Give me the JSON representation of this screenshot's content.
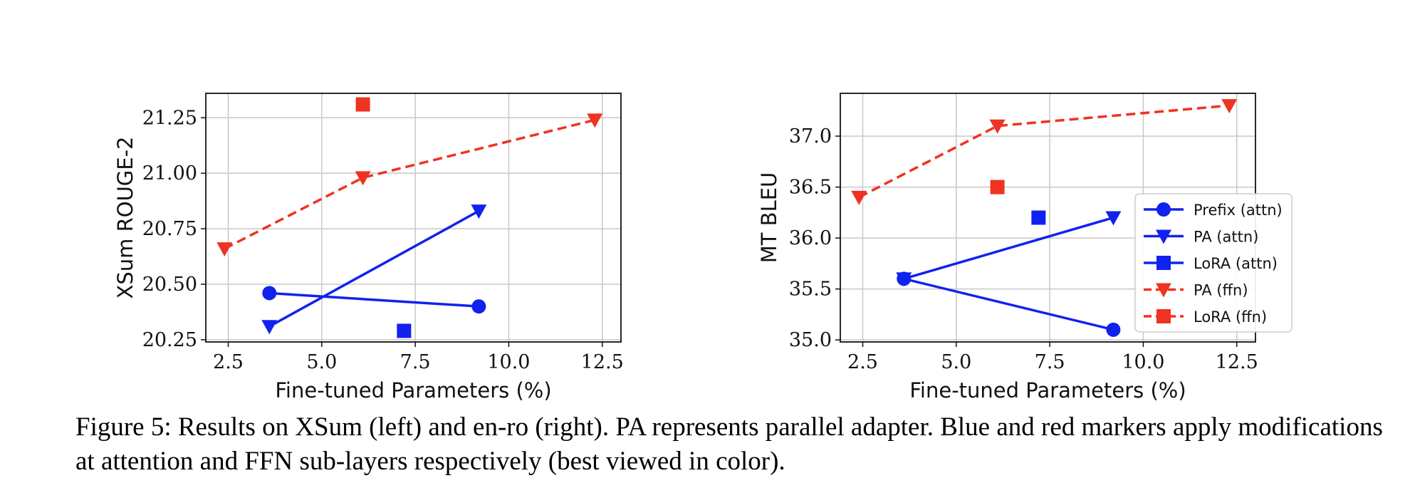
{
  "caption": "Figure 5: Results on XSum (left) and en-ro (right). PA represents parallel adapter. Blue and red markers apply modifications at attention and FFN sub-layers respectively (best viewed in color).",
  "colors": {
    "blue": "#1122ee",
    "red": "#ee3322"
  },
  "chart_data": [
    {
      "type": "line",
      "title": "",
      "xlabel": "Fine-tuned Parameters (%)",
      "ylabel": "XSum ROUGE-2",
      "xlim": [
        1.9,
        13.0
      ],
      "ylim": [
        20.24,
        21.36
      ],
      "xticks": [
        2.5,
        5.0,
        7.5,
        10.0,
        12.5
      ],
      "xtick_labels": [
        "2.5",
        "5.0",
        "7.5",
        "10.0",
        "12.5"
      ],
      "yticks": [
        20.25,
        20.5,
        20.75,
        21.0,
        21.25
      ],
      "ytick_labels": [
        "20.25",
        "20.50",
        "20.75",
        "21.00",
        "21.25"
      ],
      "grid": true,
      "legend": null,
      "series": [
        {
          "name": "Prefix (attn)",
          "marker": "circle",
          "line": "solid",
          "color": "blue",
          "points": [
            [
              3.6,
              20.46
            ],
            [
              9.2,
              20.4
            ]
          ]
        },
        {
          "name": "PA (attn)",
          "marker": "triangle-down",
          "line": "solid",
          "color": "blue",
          "points": [
            [
              3.6,
              20.31
            ],
            [
              9.2,
              20.83
            ]
          ]
        },
        {
          "name": "LoRA (attn)",
          "marker": "square",
          "line": "none",
          "color": "blue",
          "points": [
            [
              7.2,
              20.29
            ]
          ]
        },
        {
          "name": "PA (ffn)",
          "marker": "triangle-down",
          "line": "dashed",
          "color": "red",
          "points": [
            [
              2.4,
              20.66
            ],
            [
              6.1,
              20.98
            ],
            [
              12.3,
              21.24
            ]
          ]
        },
        {
          "name": "LoRA (ffn)",
          "marker": "square",
          "line": "none",
          "color": "red",
          "points": [
            [
              6.1,
              21.31
            ]
          ]
        }
      ]
    },
    {
      "type": "line",
      "title": "",
      "xlabel": "Fine-tuned Parameters (%)",
      "ylabel": "MT BLEU",
      "xlim": [
        1.9,
        13.0
      ],
      "ylim": [
        34.98,
        37.42
      ],
      "xticks": [
        2.5,
        5.0,
        7.5,
        10.0,
        12.5
      ],
      "xtick_labels": [
        "2.5",
        "5.0",
        "7.5",
        "10.0",
        "12.5"
      ],
      "yticks": [
        35.0,
        35.5,
        36.0,
        36.5,
        37.0
      ],
      "ytick_labels": [
        "35.0",
        "35.5",
        "36.0",
        "36.5",
        "37.0"
      ],
      "grid": true,
      "legend": "lower-right",
      "series": [
        {
          "name": "Prefix (attn)",
          "marker": "circle",
          "line": "solid",
          "color": "blue",
          "points": [
            [
              3.6,
              35.6
            ],
            [
              9.2,
              35.1
            ]
          ]
        },
        {
          "name": "PA (attn)",
          "marker": "triangle-down",
          "line": "solid",
          "color": "blue",
          "points": [
            [
              3.6,
              35.6
            ],
            [
              9.2,
              36.2
            ]
          ]
        },
        {
          "name": "LoRA (attn)",
          "marker": "square",
          "line": "none",
          "color": "blue",
          "points": [
            [
              7.2,
              36.2
            ]
          ]
        },
        {
          "name": "PA (ffn)",
          "marker": "triangle-down",
          "line": "dashed",
          "color": "red",
          "points": [
            [
              2.4,
              36.4
            ],
            [
              6.1,
              37.1
            ],
            [
              12.3,
              37.3
            ]
          ]
        },
        {
          "name": "LoRA (ffn)",
          "marker": "square",
          "line": "none",
          "color": "red",
          "points": [
            [
              6.1,
              36.5
            ]
          ]
        }
      ]
    }
  ]
}
